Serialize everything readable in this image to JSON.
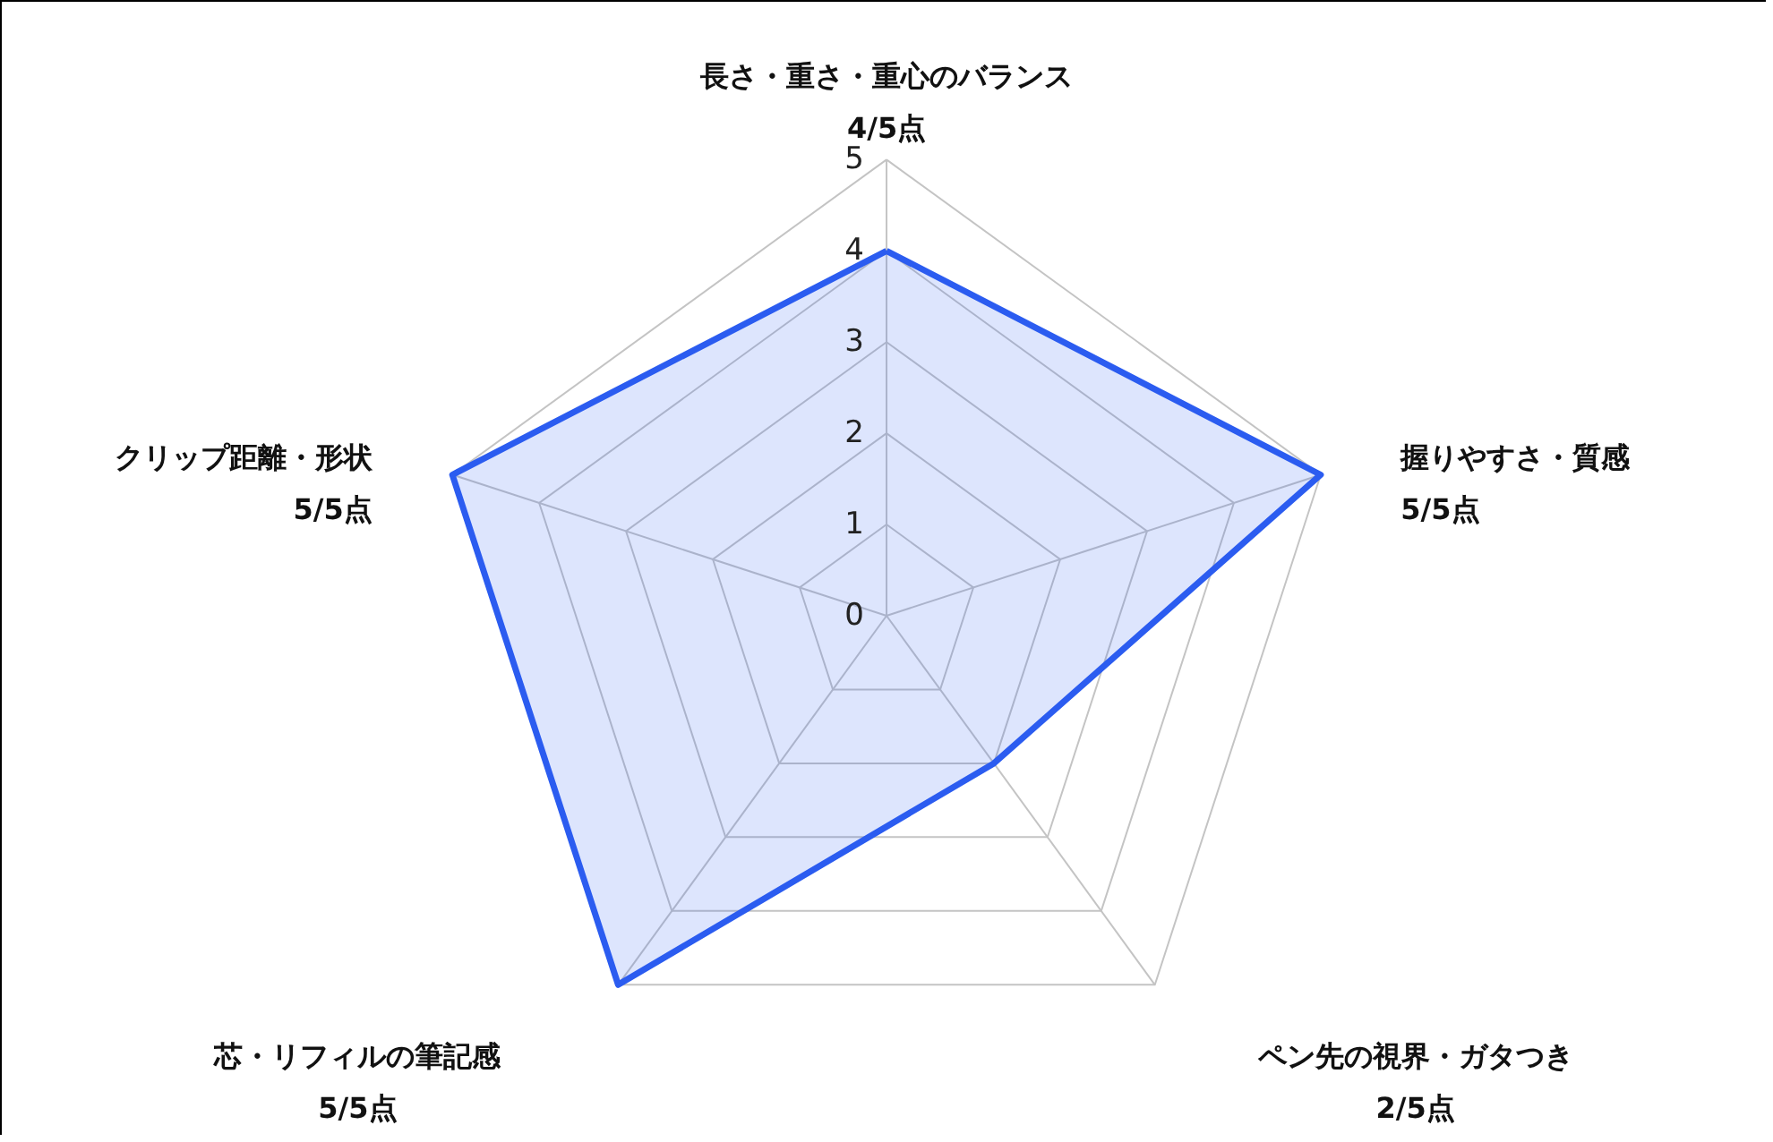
{
  "chart_data": {
    "type": "radar",
    "categories": [
      "長さ・重さ・重心のバランス",
      "握りやすさ・質感",
      "ペン先の視界・ガタつき",
      "芯・リフィルの筆記感",
      "クリップ距離・形状"
    ],
    "series": [
      {
        "color": "#2b5cf0",
        "values": [
          4,
          5,
          2,
          5,
          5
        ]
      }
    ],
    "annotations": [
      "4/5点",
      "5/5点",
      "2/5点",
      "5/5点",
      "5/5点"
    ],
    "ylim": [
      0,
      5
    ],
    "yticks": [
      0,
      1,
      2,
      3,
      4,
      5
    ],
    "grid": true,
    "marker": "none",
    "line_style": "solid"
  }
}
